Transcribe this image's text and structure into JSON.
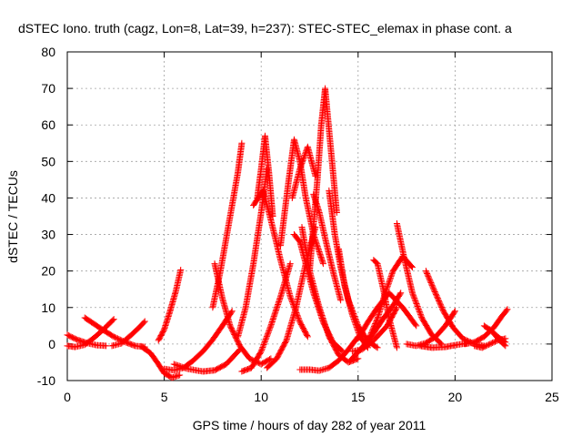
{
  "chart_data": {
    "type": "scatter",
    "title": "dSTEC Iono. truth (cagz, Lon=8, Lat=39, h=237): STEC-STEC_elemax in phase cont. a",
    "xlabel": "GPS time / hours of day 282 of year 2011",
    "ylabel": "dSTEC  / TECUs",
    "xlim": [
      0,
      25
    ],
    "ylim": [
      -10,
      80
    ],
    "xticks": [
      0,
      5,
      10,
      15,
      20,
      25
    ],
    "yticks": [
      -10,
      0,
      10,
      20,
      30,
      40,
      50,
      60,
      70,
      80
    ],
    "grid": true,
    "marker": "+",
    "color": "#ff0000",
    "series": [
      {
        "x": [
          0.0,
          0.4,
          0.9,
          1.4,
          1.9,
          2.4
        ],
        "y": [
          -0.5,
          -0.8,
          -0.2,
          1.8,
          4.2,
          6.8
        ]
      },
      {
        "x": [
          0.0,
          0.5,
          1.0,
          1.5,
          2.0
        ],
        "y": [
          2.5,
          1.2,
          0.3,
          -0.3,
          -0.5
        ]
      },
      {
        "x": [
          0.9,
          1.3,
          1.8,
          2.4,
          3.0,
          3.5,
          4.0
        ],
        "y": [
          7.2,
          5.8,
          4.0,
          2.0,
          0.5,
          -0.5,
          -0.8
        ]
      },
      {
        "x": [
          2.3,
          2.8,
          3.3,
          3.7,
          4.0
        ],
        "y": [
          -0.5,
          0.2,
          2.5,
          4.5,
          6.2
        ]
      },
      {
        "x": [
          3.8,
          4.3,
          4.7,
          5.0,
          5.4,
          5.8
        ],
        "y": [
          -0.6,
          -2.5,
          -5.5,
          -8.0,
          -9.2,
          -8.5
        ]
      },
      {
        "x": [
          5.0,
          5.5,
          6.0,
          6.5,
          7.0,
          7.5,
          8.0,
          8.5
        ],
        "y": [
          -6.8,
          -7.2,
          -6.5,
          -4.5,
          -2.0,
          1.2,
          5.0,
          9.0
        ]
      },
      {
        "x": [
          4.7,
          5.0,
          5.3,
          5.6,
          5.85
        ],
        "y": [
          1.0,
          4.0,
          9.0,
          14.5,
          20.3
        ]
      },
      {
        "x": [
          5.5,
          6.2,
          7.0,
          7.6,
          8.2,
          8.9
        ],
        "y": [
          -5.5,
          -6.8,
          -7.5,
          -7.2,
          -5.5,
          -1.5
        ]
      },
      {
        "x": [
          7.5,
          7.9,
          8.2,
          8.5,
          8.8,
          9.0
        ],
        "y": [
          10.0,
          20.0,
          29.0,
          38.0,
          47.0,
          55.0
        ]
      },
      {
        "x": [
          7.6,
          8.0,
          8.4,
          8.9,
          9.4,
          10.0,
          10.5
        ],
        "y": [
          22.0,
          12.5,
          5.0,
          -0.5,
          -4.0,
          -5.5,
          -4.0
        ]
      },
      {
        "x": [
          8.8,
          9.2,
          9.6,
          10.0,
          10.3
        ],
        "y": [
          2.0,
          10.0,
          22.0,
          36.0,
          48.0
        ]
      },
      {
        "x": [
          9.0,
          9.5,
          10.0,
          10.5,
          11.0,
          11.5
        ],
        "y": [
          -7.5,
          -6.5,
          -2.0,
          5.0,
          13.0,
          22.0
        ]
      },
      {
        "x": [
          9.8,
          10.0,
          10.2,
          10.4,
          10.6
        ],
        "y": [
          40.0,
          48.0,
          57.0,
          47.0,
          35.0
        ]
      },
      {
        "x": [
          9.6,
          10.1,
          10.5,
          11.0,
          11.5,
          12.0,
          12.4
        ],
        "y": [
          38.0,
          42.0,
          34.0,
          23.0,
          13.0,
          6.0,
          2.0
        ]
      },
      {
        "x": [
          10.3,
          10.8,
          11.3,
          11.8,
          12.3,
          12.8
        ],
        "y": [
          -6.5,
          -4.0,
          1.0,
          10.0,
          22.0,
          32.0
        ]
      },
      {
        "x": [
          11.0,
          11.4,
          11.7,
          12.0,
          12.3,
          12.7,
          13.2
        ],
        "y": [
          27.0,
          44.0,
          56.0,
          50.0,
          40.0,
          30.0,
          22.0
        ]
      },
      {
        "x": [
          11.7,
          12.0,
          12.3,
          12.7,
          13.2,
          13.7,
          14.2
        ],
        "y": [
          30.0,
          28.0,
          22.0,
          14.0,
          6.0,
          0.5,
          -2.0
        ]
      },
      {
        "x": [
          11.6,
          12.0,
          12.4,
          12.8
        ],
        "y": [
          40.0,
          48.0,
          54.0,
          46.0
        ]
      },
      {
        "x": [
          12.1,
          12.5,
          13.0,
          13.5,
          14.0,
          14.5,
          15.0
        ],
        "y": [
          32.0,
          20.0,
          10.0,
          2.0,
          -3.0,
          -5.0,
          -4.0
        ]
      },
      {
        "x": [
          12.0,
          12.5,
          13.0,
          13.5,
          14.0,
          14.5,
          15.0
        ],
        "y": [
          -7.0,
          -7.0,
          -7.3,
          -6.5,
          -4.5,
          -1.5,
          2.0
        ]
      },
      {
        "x": [
          12.5,
          12.9,
          13.1,
          13.3,
          13.6,
          13.9
        ],
        "y": [
          20.0,
          45.0,
          60.0,
          70.0,
          53.0,
          36.0
        ]
      },
      {
        "x": [
          12.7,
          13.0,
          13.3,
          13.7,
          14.1
        ],
        "y": [
          41.0,
          36.0,
          29.0,
          20.0,
          12.0
        ]
      },
      {
        "x": [
          13.5,
          13.8,
          14.1,
          14.5,
          15.0,
          15.5,
          16.0
        ],
        "y": [
          42.0,
          30.0,
          21.0,
          12.0,
          5.0,
          0.8,
          -1.0
        ]
      },
      {
        "x": [
          14.0,
          14.3,
          14.7,
          15.1,
          15.5
        ],
        "y": [
          26.0,
          16.0,
          8.0,
          2.0,
          -1.0
        ]
      },
      {
        "x": [
          14.6,
          15.2,
          15.8,
          16.3,
          16.8,
          17.2
        ],
        "y": [
          -4.5,
          -1.0,
          3.0,
          7.0,
          10.5,
          14.0
        ]
      },
      {
        "x": [
          14.7,
          15.2,
          15.8,
          16.5,
          17.0
        ],
        "y": [
          -2.0,
          -1.5,
          1.0,
          5.0,
          10.0
        ]
      },
      {
        "x": [
          15.0,
          15.5,
          16.0,
          16.6,
          17.3,
          18.0
        ],
        "y": [
          1.5,
          6.0,
          10.0,
          14.0,
          10.0,
          5.0
        ]
      },
      {
        "x": [
          15.8,
          16.0,
          16.3,
          16.6,
          17.0
        ],
        "y": [
          23.0,
          22.0,
          15.0,
          7.0,
          -1.0
        ]
      },
      {
        "x": [
          15.6,
          16.0,
          16.4,
          16.8,
          17.3,
          17.8
        ],
        "y": [
          2.0,
          7.0,
          14.0,
          20.0,
          24.0,
          21.0
        ]
      },
      {
        "x": [
          17.0,
          17.4,
          17.8,
          18.3,
          18.8,
          19.3
        ],
        "y": [
          33.0,
          23.0,
          14.0,
          7.0,
          2.5,
          0.0
        ]
      },
      {
        "x": [
          17.5,
          18.0,
          18.5,
          19.0,
          19.5,
          20.0
        ],
        "y": [
          0.0,
          -0.5,
          0.3,
          2.0,
          5.0,
          9.0
        ]
      },
      {
        "x": [
          18.5,
          18.9,
          19.4,
          19.9,
          20.4,
          21.0,
          21.5
        ],
        "y": [
          20.0,
          15.0,
          9.0,
          4.5,
          1.5,
          0.0,
          -0.5
        ]
      },
      {
        "x": [
          18.2,
          18.8,
          19.5,
          20.1,
          20.6
        ],
        "y": [
          -0.5,
          -1.0,
          -0.8,
          -0.2,
          0.2
        ]
      },
      {
        "x": [
          20.5,
          21.0,
          21.5,
          22.0,
          22.4,
          22.7
        ],
        "y": [
          0.0,
          0.5,
          2.0,
          4.5,
          7.5,
          9.5
        ]
      },
      {
        "x": [
          21.0,
          21.4,
          21.8,
          22.2,
          22.6
        ],
        "y": [
          -0.5,
          -1.0,
          0.0,
          1.0,
          1.5
        ]
      },
      {
        "x": [
          21.5,
          21.9,
          22.3,
          22.6
        ],
        "y": [
          5.0,
          3.5,
          1.0,
          -0.5
        ]
      },
      {
        "x": [
          21.8,
          22.2,
          22.6
        ],
        "y": [
          4.0,
          2.0,
          0.5
        ]
      }
    ]
  }
}
